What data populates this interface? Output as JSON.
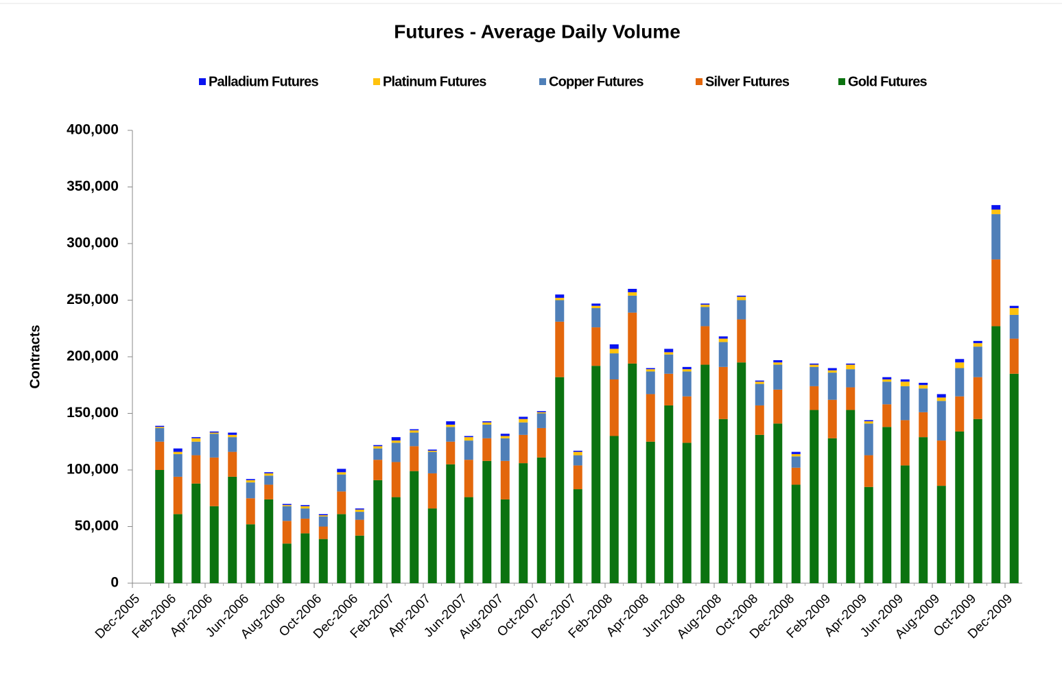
{
  "chart_data": {
    "type": "stacked_bar",
    "title": "Futures - Average Daily Volume",
    "y_label": "Contracts",
    "x_labels": [
      "Dec-2005",
      "Feb-2006",
      "Apr-2006",
      "Jun-2006",
      "Aug-2006",
      "Oct-2006",
      "Dec-2006",
      "Feb-2007",
      "Apr-2007",
      "Jun-2007",
      "Aug-2007",
      "Oct-2007",
      "Dec-2007",
      "Feb-2008",
      "Apr-2008",
      "Jun-2008",
      "Aug-2008",
      "Oct-2008",
      "Dec-2008",
      "Feb-2009",
      "Apr-2009",
      "Jun-2009",
      "Aug-2009",
      "Oct-2009",
      "Dec-2009"
    ],
    "ylim": [
      0,
      400000
    ],
    "yticks": [
      0,
      {
        "value": 50000,
        "label": "50,000"
      },
      {
        "value": 100000,
        "label": "100,000"
      },
      {
        "value": 150000,
        "label": "150,000"
      },
      {
        "value": 200000,
        "label": "200,000"
      },
      {
        "value": 250000,
        "label": "250,000"
      },
      {
        "value": 300000,
        "label": "300,000"
      },
      {
        "value": 350000,
        "label": "350,000"
      },
      {
        "value": 400000,
        "label": "400,000"
      }
    ],
    "series": [
      {
        "name": "Palladium Futures",
        "color": "#0a14f0",
        "values": [
          1000,
          3000,
          1000,
          1000,
          2000,
          1000,
          1000,
          1000,
          1000,
          1000,
          3000,
          1000,
          1000,
          3000,
          1000,
          1000,
          3000,
          1000,
          1000,
          2000,
          2000,
          1000,
          3000,
          1000,
          2000,
          4000,
          3000,
          1000,
          3000,
          2000,
          1000,
          2000,
          1000,
          1000,
          2000,
          2000,
          1000,
          2000,
          1000,
          1000,
          2000,
          2000,
          2000,
          3000,
          3000,
          2000,
          4000,
          2000
        ]
      },
      {
        "name": "Platinum Futures",
        "color": "#ffc20e",
        "values": [
          1000,
          2000,
          3000,
          1000,
          2000,
          2000,
          2000,
          1000,
          2000,
          1000,
          2000,
          2000,
          2000,
          2000,
          2000,
          1000,
          2000,
          3000,
          2000,
          2000,
          3000,
          1000,
          2000,
          3000,
          2000,
          4000,
          3000,
          2000,
          2000,
          2000,
          2000,
          3000,
          3000,
          2000,
          2000,
          2000,
          2000,
          2000,
          4000,
          2000,
          2000,
          4000,
          3000,
          3000,
          5000,
          3000,
          4000,
          6000
        ]
      },
      {
        "name": "Copper Futures",
        "color": "#4f7fb8",
        "values": [
          12000,
          20000,
          12000,
          21000,
          13000,
          14000,
          8000,
          13000,
          9000,
          9000,
          15000,
          7000,
          10000,
          17000,
          12000,
          19000,
          13000,
          17000,
          12000,
          20000,
          11000,
          13000,
          19000,
          9000,
          17000,
          23000,
          15000,
          20000,
          17000,
          22000,
          17000,
          22000,
          17000,
          19000,
          22000,
          10000,
          17000,
          24000,
          16000,
          28000,
          20000,
          30000,
          21000,
          35000,
          25000,
          27000,
          40000,
          21000
        ]
      },
      {
        "name": "Silver Futures",
        "color": "#e3670c",
        "values": [
          25000,
          33000,
          25000,
          43000,
          22000,
          23000,
          13000,
          20000,
          13000,
          11000,
          20000,
          14000,
          18000,
          31000,
          22000,
          31000,
          20000,
          33000,
          20000,
          34000,
          25000,
          26000,
          49000,
          21000,
          34000,
          50000,
          45000,
          42000,
          28000,
          41000,
          34000,
          46000,
          38000,
          26000,
          30000,
          15000,
          21000,
          34000,
          20000,
          28000,
          20000,
          40000,
          22000,
          40000,
          31000,
          37000,
          59000,
          31000
        ]
      },
      {
        "name": "Gold Futures",
        "color": "#0b7310",
        "values": [
          100000,
          61000,
          88000,
          68000,
          94000,
          52000,
          74000,
          35000,
          44000,
          39000,
          61000,
          42000,
          91000,
          76000,
          99000,
          66000,
          105000,
          76000,
          108000,
          74000,
          106000,
          111000,
          182000,
          83000,
          192000,
          130000,
          194000,
          125000,
          157000,
          124000,
          193000,
          145000,
          195000,
          131000,
          141000,
          87000,
          153000,
          128000,
          153000,
          85000,
          138000,
          104000,
          129000,
          86000,
          134000,
          145000,
          227000,
          185000
        ]
      }
    ]
  }
}
